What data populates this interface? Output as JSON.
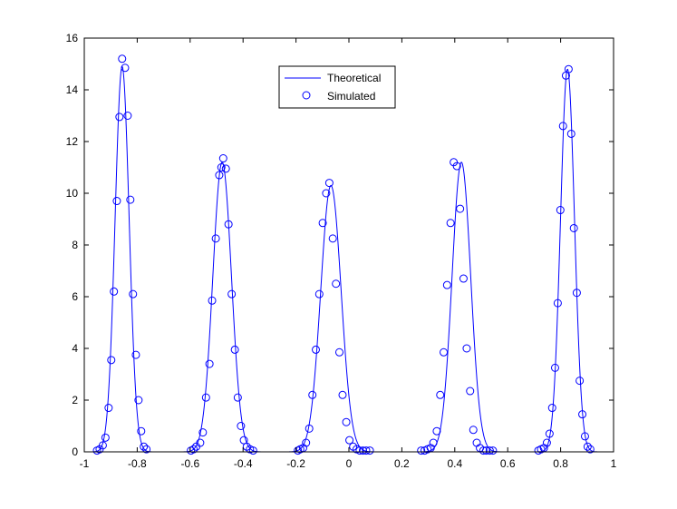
{
  "chart_data": {
    "type": "line",
    "title": "",
    "xlabel": "",
    "ylabel": "",
    "xlim": [
      -1,
      1
    ],
    "ylim": [
      0,
      16
    ],
    "grid": false,
    "legend_position": "top-center",
    "x_ticks": [
      -1,
      -0.8,
      -0.6,
      -0.4,
      -0.2,
      0,
      0.2,
      0.4,
      0.6,
      0.8,
      1
    ],
    "x_tick_labels": [
      "-1",
      "-0.8",
      "-0.6",
      "-0.4",
      "-0.2",
      "0",
      "0.2",
      "0.4",
      "0.6",
      "0.8",
      "1"
    ],
    "y_ticks": [
      0,
      2,
      4,
      6,
      8,
      10,
      12,
      14,
      16
    ],
    "y_tick_labels": [
      "0",
      "2",
      "4",
      "6",
      "8",
      "10",
      "12",
      "14",
      "16"
    ],
    "series": [
      {
        "name": "Theoretical",
        "style": "line",
        "color": "#0000ff",
        "peaks": [
          {
            "center": -0.857,
            "height": 14.9,
            "sigma": 0.0265
          },
          {
            "center": -0.479,
            "height": 11.2,
            "sigma": 0.0352
          },
          {
            "center": -0.068,
            "height": 10.3,
            "sigma": 0.0385
          },
          {
            "center": 0.425,
            "height": 11.2,
            "sigma": 0.0352
          },
          {
            "center": 0.826,
            "height": 14.8,
            "sigma": 0.0265
          }
        ]
      },
      {
        "name": "Simulated",
        "style": "marker-circle",
        "color": "#0000ff",
        "x": [
          -0.952,
          -0.942,
          -0.93,
          -0.92,
          -0.908,
          -0.898,
          -0.888,
          -0.877,
          -0.867,
          -0.857,
          -0.846,
          -0.836,
          -0.826,
          -0.816,
          -0.805,
          -0.795,
          -0.785,
          -0.775,
          -0.765,
          -0.597,
          -0.587,
          -0.577,
          -0.562,
          -0.552,
          -0.54,
          -0.527,
          -0.517,
          -0.503,
          -0.49,
          -0.482,
          -0.475,
          -0.465,
          -0.455,
          -0.443,
          -0.431,
          -0.42,
          -0.408,
          -0.397,
          -0.386,
          -0.374,
          -0.362,
          -0.193,
          -0.184,
          -0.173,
          -0.162,
          -0.15,
          -0.138,
          -0.125,
          -0.112,
          -0.099,
          -0.086,
          -0.074,
          -0.061,
          -0.049,
          -0.036,
          -0.024,
          -0.01,
          0.002,
          0.016,
          0.029,
          0.041,
          0.053,
          0.065,
          0.079,
          0.273,
          0.286,
          0.297,
          0.309,
          0.319,
          0.332,
          0.345,
          0.358,
          0.371,
          0.384,
          0.396,
          0.408,
          0.42,
          0.433,
          0.445,
          0.458,
          0.47,
          0.483,
          0.495,
          0.508,
          0.519,
          0.532,
          0.544,
          0.716,
          0.726,
          0.737,
          0.748,
          0.758,
          0.768,
          0.779,
          0.789,
          0.799,
          0.809,
          0.82,
          0.83,
          0.84,
          0.85,
          0.861,
          0.872,
          0.882,
          0.892,
          0.902,
          0.912
        ],
        "y": [
          0.05,
          0.1,
          0.25,
          0.55,
          1.7,
          3.55,
          6.2,
          9.7,
          12.95,
          15.2,
          14.85,
          13.0,
          9.75,
          6.1,
          3.75,
          2.0,
          0.8,
          0.2,
          0.1,
          0.05,
          0.1,
          0.2,
          0.35,
          0.75,
          2.1,
          3.4,
          5.85,
          8.25,
          10.7,
          11.0,
          11.35,
          10.95,
          8.8,
          6.1,
          3.95,
          2.1,
          1.0,
          0.45,
          0.2,
          0.1,
          0.05,
          0.05,
          0.1,
          0.15,
          0.35,
          0.9,
          2.2,
          3.95,
          6.1,
          8.85,
          10.0,
          10.4,
          8.25,
          6.5,
          3.85,
          2.2,
          1.15,
          0.45,
          0.2,
          0.1,
          0.05,
          0.05,
          0.05,
          0.05,
          0.05,
          0.05,
          0.1,
          0.15,
          0.35,
          0.8,
          2.2,
          3.85,
          6.45,
          8.85,
          11.2,
          11.05,
          9.4,
          6.7,
          4.0,
          2.35,
          0.85,
          0.35,
          0.15,
          0.05,
          0.05,
          0.05,
          0.05,
          0.05,
          0.1,
          0.15,
          0.35,
          0.7,
          1.7,
          3.25,
          5.75,
          9.35,
          12.6,
          14.55,
          14.8,
          12.3,
          8.65,
          6.15,
          2.75,
          1.45,
          0.6,
          0.2,
          0.1
        ]
      }
    ]
  }
}
